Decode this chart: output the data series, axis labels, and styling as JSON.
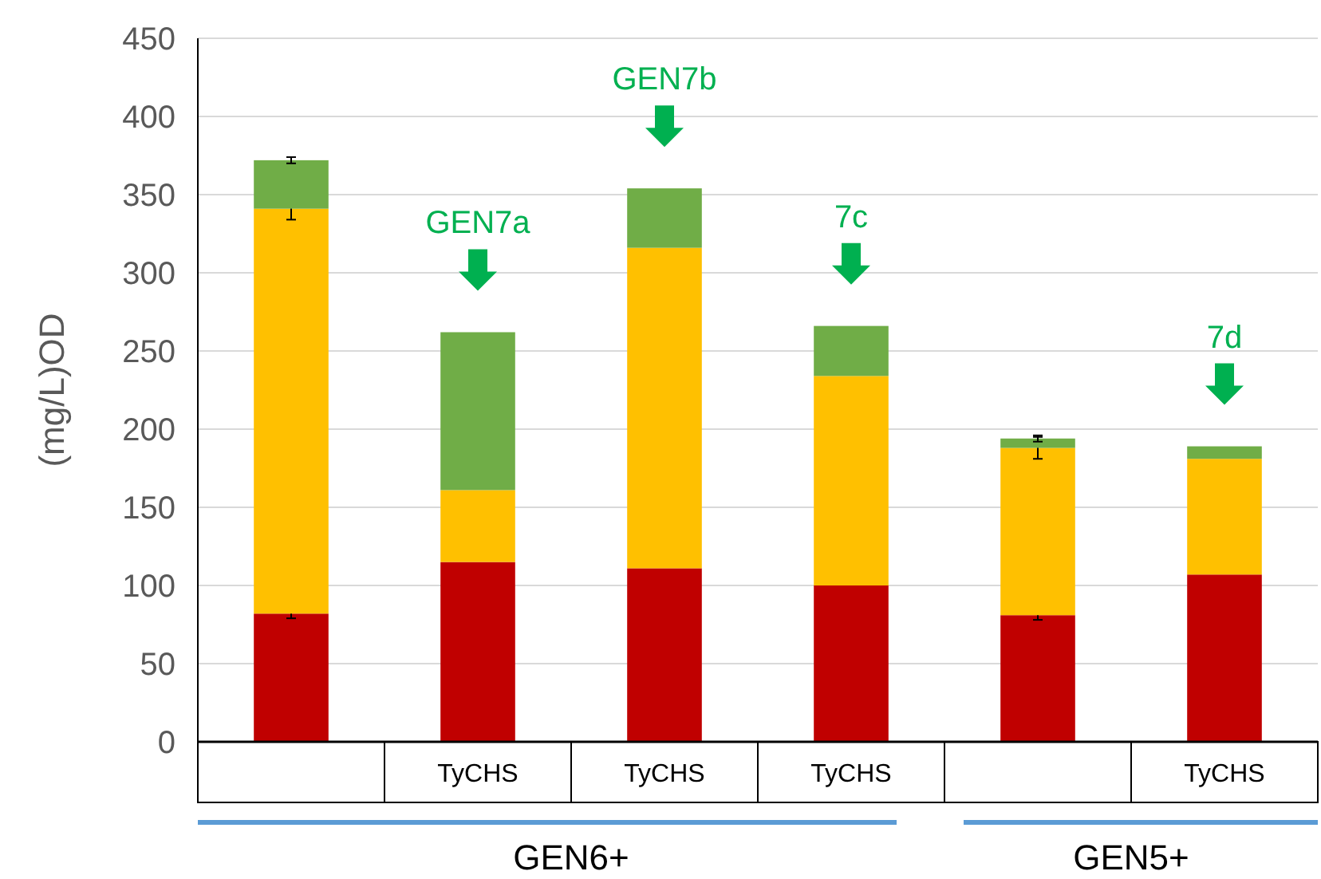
{
  "chart_data": {
    "type": "bar",
    "stacked": true,
    "ylabel": "(mg/L)OD",
    "categories": [
      null,
      "TyCHS",
      "TyCHS",
      "TyCHS",
      null,
      "TyCHS"
    ],
    "series": [
      {
        "color": "#c00000",
        "values": [
          82,
          115,
          111,
          100,
          81,
          107
        ],
        "errors": [
          3,
          null,
          null,
          null,
          3,
          null
        ]
      },
      {
        "color": "#ffc000",
        "values": [
          259,
          46,
          205,
          134,
          107,
          74
        ],
        "errors": [
          7,
          null,
          null,
          null,
          7,
          null
        ]
      },
      {
        "color": "#70ad47",
        "values": [
          31,
          101,
          38,
          32,
          6,
          8
        ],
        "errors": [
          2,
          null,
          null,
          null,
          2,
          null
        ]
      }
    ],
    "ylim": [
      0,
      450
    ],
    "yticks": [
      0,
      50,
      100,
      150,
      200,
      250,
      300,
      350,
      400,
      450
    ],
    "grid": "y",
    "annotations": [
      "GEN7a",
      "GEN7b",
      "7c",
      "7d",
      "GEN6+",
      "GEN5+"
    ]
  }
}
